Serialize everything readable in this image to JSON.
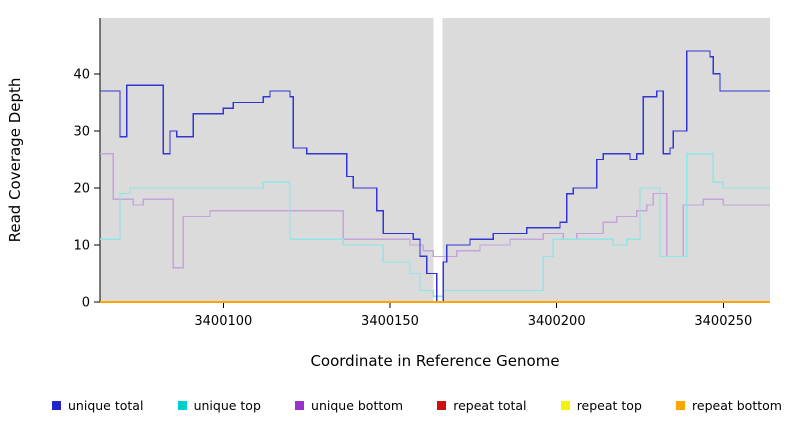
{
  "chart_data": {
    "type": "line",
    "step": true,
    "title": "",
    "xlabel": "Coordinate in Reference Genome",
    "ylabel": "Read Coverage Depth",
    "xlim": [
      3400063,
      3400264
    ],
    "ylim": [
      0,
      49.8
    ],
    "x_ticks": [
      3400100,
      3400150,
      3400200,
      3400250
    ],
    "y_ticks": [
      0,
      10,
      20,
      30,
      40
    ],
    "plot_bg": "#DBDBDB",
    "gap_color": "#FFFFFF",
    "gap_x": [
      3400163.1,
      3400165.7
    ],
    "legend_position": "bottom",
    "grid": false,
    "series": [
      {
        "name": "unique total",
        "legend_color": "#2424CC",
        "line_color": "#3434D4",
        "width": 1.3,
        "points": [
          [
            3400063,
            37
          ],
          [
            3400069,
            29
          ],
          [
            3400071,
            38
          ],
          [
            3400082,
            26
          ],
          [
            3400084,
            30
          ],
          [
            3400086,
            29
          ],
          [
            3400091,
            33
          ],
          [
            3400100,
            34
          ],
          [
            3400103,
            35
          ],
          [
            3400112,
            36
          ],
          [
            3400114,
            37
          ],
          [
            3400120,
            36
          ],
          [
            3400121,
            27
          ],
          [
            3400125,
            26
          ],
          [
            3400137,
            22
          ],
          [
            3400139,
            20
          ],
          [
            3400146,
            16
          ],
          [
            3400148,
            12
          ],
          [
            3400157,
            11
          ],
          [
            3400159,
            8
          ],
          [
            3400161,
            5
          ],
          [
            3400164,
            0
          ],
          [
            3400166,
            7
          ],
          [
            3400167,
            10
          ],
          [
            3400174,
            11
          ],
          [
            3400181,
            12
          ],
          [
            3400191,
            13
          ],
          [
            3400201,
            14
          ],
          [
            3400203,
            19
          ],
          [
            3400205,
            20
          ],
          [
            3400212,
            25
          ],
          [
            3400214,
            26
          ],
          [
            3400222,
            25
          ],
          [
            3400224,
            26
          ],
          [
            3400226,
            36
          ],
          [
            3400230,
            37
          ],
          [
            3400232,
            26
          ],
          [
            3400234,
            27
          ],
          [
            3400235,
            30
          ],
          [
            3400239,
            44
          ],
          [
            3400246,
            43
          ],
          [
            3400247,
            40
          ],
          [
            3400249,
            37
          ],
          [
            3400264,
            37
          ]
        ]
      },
      {
        "name": "unique top",
        "legend_color": "#00CDCD",
        "line_color": "#8FE6E6",
        "width": 1.2,
        "points": [
          [
            3400063,
            11
          ],
          [
            3400069,
            19
          ],
          [
            3400072,
            20
          ],
          [
            3400090,
            20
          ],
          [
            3400112,
            21
          ],
          [
            3400120,
            11
          ],
          [
            3400136,
            10
          ],
          [
            3400148,
            7
          ],
          [
            3400156,
            5
          ],
          [
            3400159,
            2
          ],
          [
            3400163,
            1
          ],
          [
            3400166,
            2
          ],
          [
            3400196,
            8
          ],
          [
            3400199,
            11
          ],
          [
            3400217,
            10
          ],
          [
            3400221,
            11
          ],
          [
            3400225,
            20
          ],
          [
            3400231,
            8
          ],
          [
            3400239,
            26
          ],
          [
            3400247,
            21
          ],
          [
            3400250,
            20
          ],
          [
            3400264,
            20
          ]
        ]
      },
      {
        "name": "unique bottom",
        "legend_color": "#9932CC",
        "line_color": "#C6A3DC",
        "width": 1.2,
        "points": [
          [
            3400063,
            26
          ],
          [
            3400067,
            18
          ],
          [
            3400073,
            17
          ],
          [
            3400076,
            18
          ],
          [
            3400085,
            6
          ],
          [
            3400088,
            15
          ],
          [
            3400096,
            16
          ],
          [
            3400120,
            16
          ],
          [
            3400136,
            11
          ],
          [
            3400152,
            11
          ],
          [
            3400156,
            10
          ],
          [
            3400160,
            9
          ],
          [
            3400163,
            8
          ],
          [
            3400166,
            8
          ],
          [
            3400170,
            9
          ],
          [
            3400177,
            10
          ],
          [
            3400186,
            11
          ],
          [
            3400196,
            12
          ],
          [
            3400202,
            11
          ],
          [
            3400206,
            12
          ],
          [
            3400214,
            14
          ],
          [
            3400218,
            15
          ],
          [
            3400224,
            16
          ],
          [
            3400227,
            17
          ],
          [
            3400229,
            19
          ],
          [
            3400233,
            8
          ],
          [
            3400238,
            17
          ],
          [
            3400244,
            18
          ],
          [
            3400250,
            17
          ],
          [
            3400264,
            17
          ]
        ]
      },
      {
        "name": "repeat total",
        "legend_color": "#CC1111",
        "line_color": "#CC1111",
        "width": 1.2,
        "points": [
          [
            3400063,
            0
          ],
          [
            3400264,
            0
          ]
        ]
      },
      {
        "name": "repeat top",
        "legend_color": "#F2F20A",
        "line_color": "#F2F20A",
        "width": 1.2,
        "points": [
          [
            3400063,
            0
          ],
          [
            3400264,
            0
          ]
        ]
      },
      {
        "name": "repeat bottom",
        "legend_color": "#FFA500",
        "line_color": "#FFA500",
        "width": 1.8,
        "points": [
          [
            3400063,
            0
          ],
          [
            3400264,
            0
          ]
        ]
      }
    ]
  }
}
